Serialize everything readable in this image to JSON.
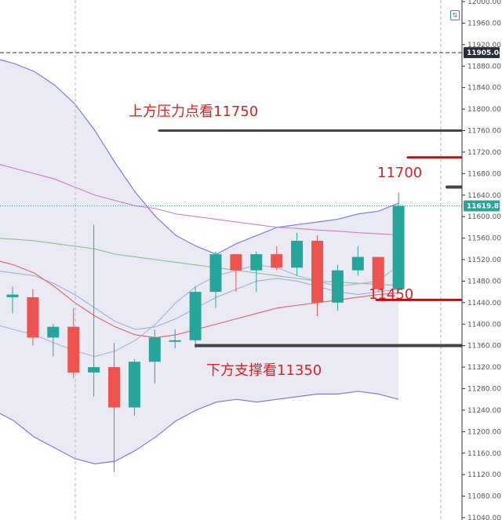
{
  "chart_data": {
    "type": "candlestick",
    "title": "",
    "y_axis": {
      "ticks": [
        "12000.00",
        "11960.00",
        "11920.00",
        "11880.00",
        "11840.00",
        "11800.00",
        "11760.00",
        "11720.00",
        "11680.00",
        "11640.00",
        "11600.00",
        "11560.00",
        "11520.00",
        "11480.00",
        "11440.00",
        "11400.00",
        "11360.00",
        "11320.00",
        "11280.00",
        "11240.00",
        "11200.00",
        "11160.00",
        "11120.00",
        "11080.00",
        "11040.00"
      ],
      "ylim": [
        11040,
        12000
      ],
      "position": "right"
    },
    "price_tags": [
      {
        "label": "11905.04",
        "value": 11905.04,
        "color": "#2a2e39",
        "style": "dashed"
      },
      {
        "label": "11619.87",
        "value": 11619.87,
        "color": "#26a69a",
        "style": "dotted"
      }
    ],
    "candles": [
      {
        "o": 11450,
        "h": 11470,
        "l": 11420,
        "c": 11455,
        "color": "up"
      },
      {
        "o": 11450,
        "h": 11465,
        "l": 11360,
        "c": 11375,
        "color": "down"
      },
      {
        "o": 11375,
        "h": 11400,
        "l": 11340,
        "c": 11395,
        "color": "up"
      },
      {
        "o": 11395,
        "h": 11430,
        "l": 11300,
        "c": 11310,
        "color": "down"
      },
      {
        "o": 11310,
        "h": 11585,
        "l": 11265,
        "c": 11320,
        "color": "up"
      },
      {
        "o": 11320,
        "h": 11365,
        "l": 11125,
        "c": 11245,
        "color": "down"
      },
      {
        "o": 11245,
        "h": 11335,
        "l": 11230,
        "c": 11330,
        "color": "up"
      },
      {
        "o": 11330,
        "h": 11390,
        "l": 11290,
        "c": 11375,
        "color": "up"
      },
      {
        "o": 11370,
        "h": 11390,
        "l": 11355,
        "c": 11370,
        "color": "up"
      },
      {
        "o": 11370,
        "h": 11470,
        "l": 11355,
        "c": 11460,
        "color": "up"
      },
      {
        "o": 11460,
        "h": 11535,
        "l": 11430,
        "c": 11530,
        "color": "up"
      },
      {
        "o": 11530,
        "h": 11530,
        "l": 11460,
        "c": 11500,
        "color": "down"
      },
      {
        "o": 11500,
        "h": 11535,
        "l": 11460,
        "c": 11530,
        "color": "up"
      },
      {
        "o": 11530,
        "h": 11545,
        "l": 11500,
        "c": 11505,
        "color": "down"
      },
      {
        "o": 11505,
        "h": 11570,
        "l": 11490,
        "c": 11555,
        "color": "up"
      },
      {
        "o": 11555,
        "h": 11565,
        "l": 11415,
        "c": 11440,
        "color": "down"
      },
      {
        "o": 11440,
        "h": 11510,
        "l": 11425,
        "c": 11500,
        "color": "up"
      },
      {
        "o": 11500,
        "h": 11545,
        "l": 11490,
        "c": 11525,
        "color": "up"
      },
      {
        "o": 11525,
        "h": 11525,
        "l": 11460,
        "c": 11465,
        "color": "down"
      },
      {
        "o": 11465,
        "h": 11645,
        "l": 11460,
        "c": 11620,
        "color": "up"
      }
    ],
    "bollinger": {
      "upper": [
        11895,
        11885,
        11870,
        11845,
        11810,
        11760,
        11700,
        11645,
        11600,
        11565,
        11545,
        11530,
        11550,
        11565,
        11580,
        11585,
        11590,
        11595,
        11605,
        11610,
        11625
      ],
      "middle": [
        11500,
        11495,
        11490,
        11475,
        11455,
        11430,
        11405,
        11390,
        11395,
        11410,
        11430,
        11450,
        11465,
        11480,
        11485,
        11480,
        11470,
        11460,
        11455,
        11460,
        11465
      ],
      "lower": [
        11240,
        11220,
        11190,
        11170,
        11150,
        11140,
        11145,
        11165,
        11190,
        11220,
        11240,
        11255,
        11260,
        11255,
        11260,
        11265,
        11270,
        11270,
        11275,
        11270,
        11260
      ]
    },
    "moving_averages": [
      {
        "color": "#d27ac8",
        "values": [
          11700,
          11690,
          11680,
          11670,
          11655,
          11640,
          11630,
          11620,
          11615,
          11605,
          11600,
          11595,
          11590,
          11585,
          11580,
          11578,
          11575,
          11573,
          11570,
          11568,
          11566
        ]
      },
      {
        "color": "#86c08c",
        "values": [
          11560,
          11558,
          11555,
          11550,
          11545,
          11540,
          11530,
          11525,
          11520,
          11515,
          11510,
          11505,
          11500,
          11495,
          11490,
          11485,
          11480,
          11478,
          11476,
          11474,
          11472
        ]
      },
      {
        "color": "#e06060",
        "values": [
          11520,
          11510,
          11495,
          11470,
          11440,
          11415,
          11395,
          11380,
          11375,
          11380,
          11390,
          11400,
          11410,
          11420,
          11430,
          11435,
          11440,
          11445,
          11450,
          11455,
          11458
        ]
      },
      {
        "color": "#a7b3de",
        "values": [
          11400,
          11390,
          11380,
          11365,
          11350,
          11340,
          11350,
          11370,
          11400,
          11440,
          11470,
          11490,
          11500,
          11510,
          11505,
          11490,
          11480,
          11470,
          11475,
          11480,
          11510
        ]
      }
    ],
    "levels": [
      {
        "value": 11760,
        "color": "#444444"
      },
      {
        "value": 11710,
        "color": "#e00000"
      },
      {
        "value": 11655,
        "color": "#444444"
      },
      {
        "value": 11445,
        "color": "#e00000"
      },
      {
        "value": 11360,
        "color": "#444444"
      }
    ],
    "annotations": [
      {
        "id": "resistance",
        "text": "上方压力点看11750"
      },
      {
        "id": "target-high",
        "text": "11700"
      },
      {
        "id": "target-low",
        "text": "11450"
      },
      {
        "id": "support",
        "text": "下方支撑看11350"
      }
    ],
    "colors": {
      "up": "#26a69a",
      "down": "#ef5350",
      "band_fill": "#e8e8f4",
      "band_line": "#7b7bea",
      "grid": "#b0b0b0",
      "axis": "#333333"
    }
  }
}
